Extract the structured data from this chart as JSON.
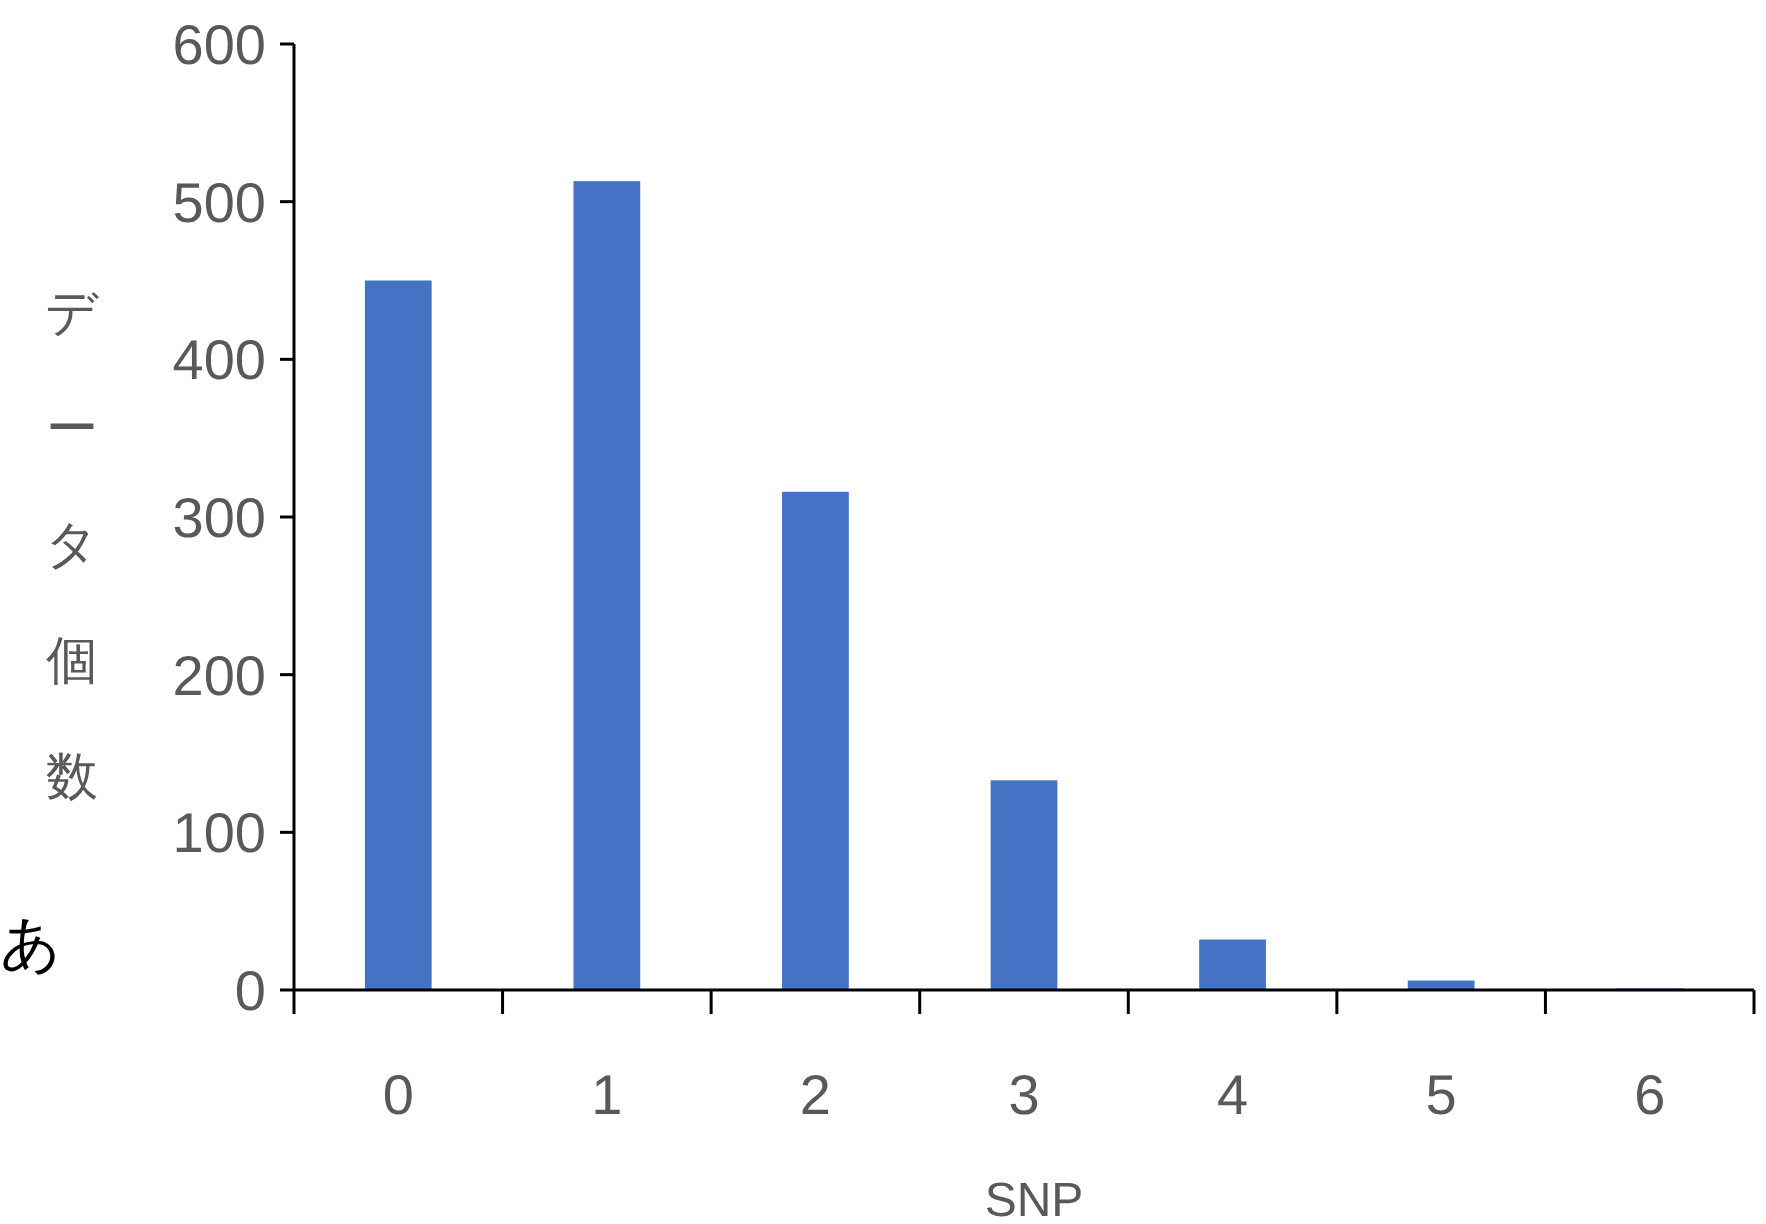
{
  "chart_data": {
    "type": "bar",
    "xlabel": "SNP",
    "ylabel": "データ個数",
    "categories": [
      "0",
      "1",
      "2",
      "3",
      "4",
      "5",
      "6"
    ],
    "values": [
      450,
      513,
      316,
      133,
      32,
      6,
      1
    ],
    "color": "#4472c4",
    "ylim": [
      0,
      600
    ],
    "yticks": [
      0,
      100,
      200,
      300,
      400,
      500,
      600
    ],
    "grid": false,
    "annotations": [
      "あ"
    ]
  }
}
